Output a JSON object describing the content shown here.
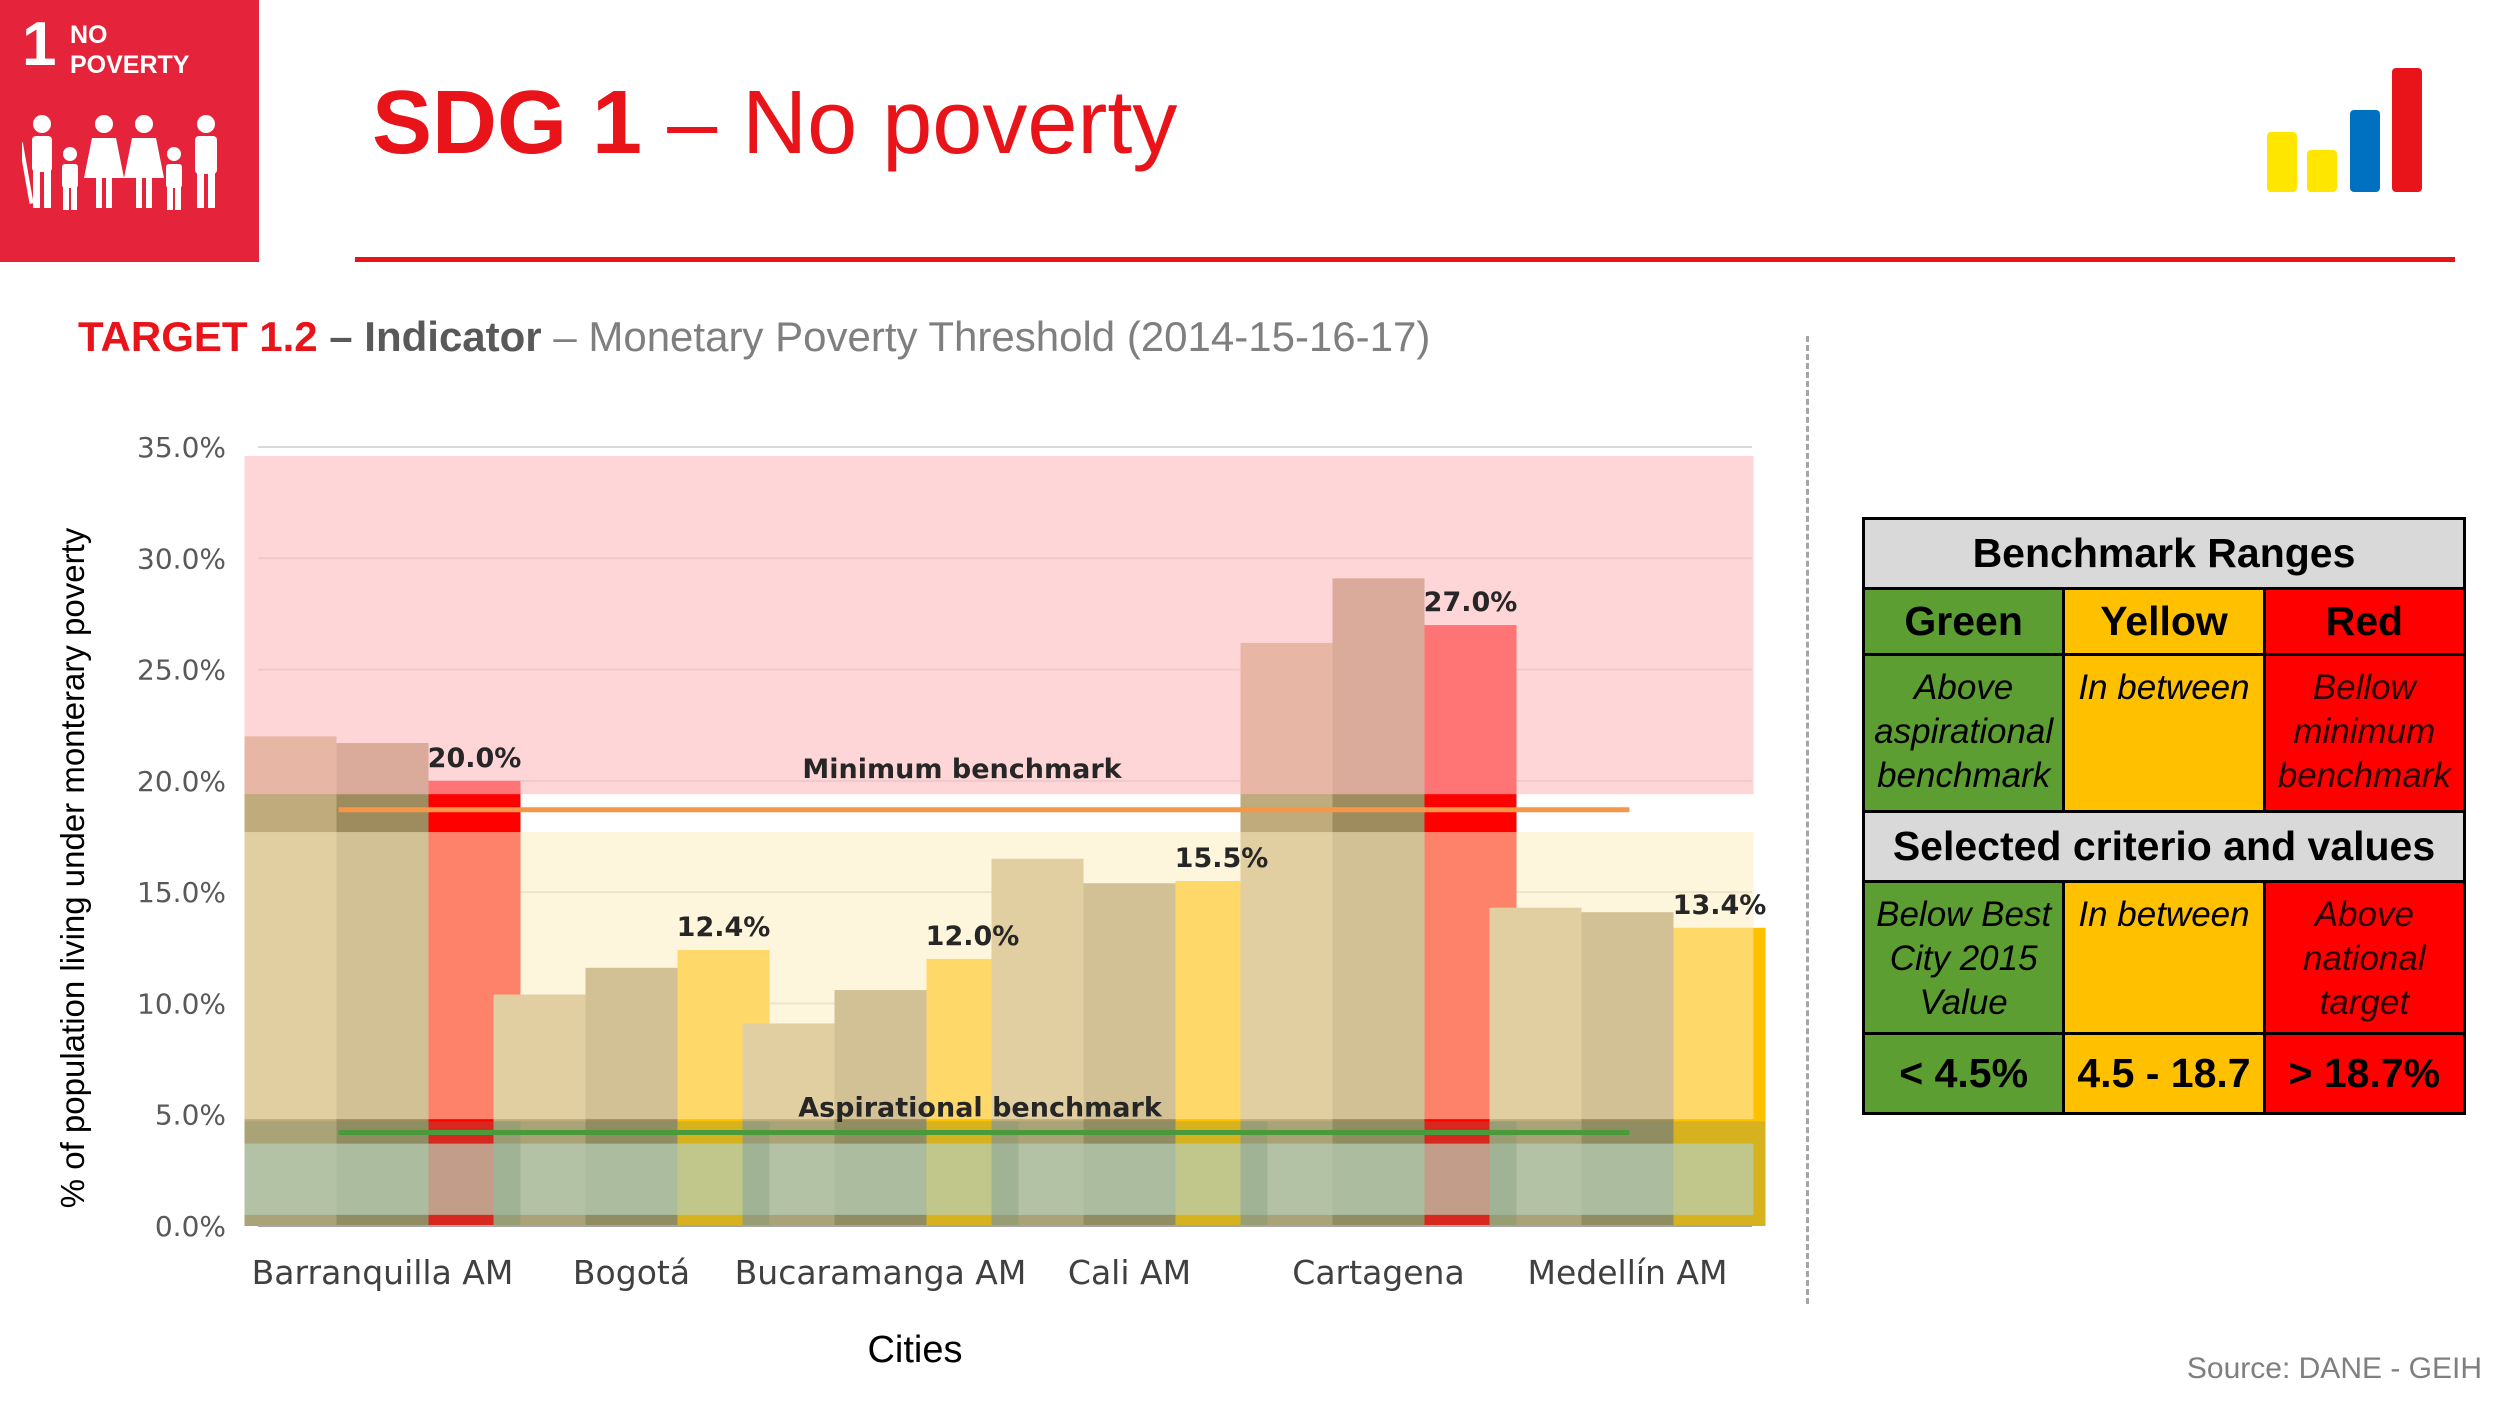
{
  "logo": {
    "goal_number": "1",
    "goal_line1": "NO",
    "goal_line2": "POVERTY",
    "people_icon": "family-icon",
    "brand_icon": "bar-chart-logo-icon"
  },
  "header": {
    "title_bold": "SDG 1",
    "title_rest": " – No poverty"
  },
  "subtitle": {
    "target": "TARGET 1.2",
    "indicator": " – Indicator",
    "description": " – Monetary Poverty Threshold (2014-15-16-17)"
  },
  "colors": {
    "brand_red": "#e8141a",
    "bar_2014": "#bfab7b",
    "bar_2015": "#9e8c5f",
    "bar_yellow": "#ffc000",
    "bar_red": "#ff0000",
    "band_red": "#ffbdbf",
    "band_yellow": "#fdedc1",
    "band_green": "#d4e8d4",
    "min_benchmark_line": "#f79646",
    "asp_benchmark_line": "#4a9a3c",
    "table_green": "#5c9e31",
    "table_yellow": "#ffc000",
    "table_red": "#ff0000"
  },
  "chart_data": {
    "type": "bar",
    "ylabel": "% of population living under monterary poverty",
    "xlabel": "Cities",
    "ylim": [
      0,
      35
    ],
    "yticks": [
      0,
      5,
      10,
      15,
      20,
      25,
      30,
      35
    ],
    "ytick_labels": [
      "0.0%",
      "5.0%",
      "10.0%",
      "15.0%",
      "20.0%",
      "25.0%",
      "30.0%",
      "35.0%"
    ],
    "grid": true,
    "categories": [
      "Barranquilla AM",
      "Bogotá",
      "Bucaramanga AM",
      "Cali AM",
      "Cartagena",
      "Medellín AM"
    ],
    "series": [
      {
        "values": [
          22.0,
          10.4,
          9.1,
          16.5,
          26.2,
          14.3
        ]
      },
      {
        "values": [
          21.7,
          11.6,
          10.6,
          15.4,
          29.1,
          14.1
        ]
      },
      {
        "values": [
          20.0,
          12.4,
          12.0,
          15.5,
          27.0,
          13.4
        ],
        "labels": [
          "20.0%",
          "12.4%",
          "12.0%",
          "15.5%",
          "27.0%",
          "13.4%"
        ],
        "status": [
          "red",
          "yellow",
          "yellow",
          "yellow",
          "red",
          "yellow"
        ]
      }
    ],
    "bands": [
      {
        "level": "red",
        "from": 19.4,
        "to": 34.6
      },
      {
        "level": "yellow",
        "from": 4.8,
        "to": 17.7
      },
      {
        "level": "green",
        "from": 0.5,
        "to": 3.7
      }
    ],
    "reference_lines": [
      {
        "label": "Minimum benchmark",
        "value": 18.7,
        "color": "#f79646"
      },
      {
        "label": "Aspirational benchmark",
        "value": 4.2,
        "color": "#4a9a3c"
      }
    ]
  },
  "table": {
    "title": "Benchmark Ranges",
    "columns": [
      "Green",
      "Yellow",
      "Red"
    ],
    "ranges": [
      "Above aspirational benchmark",
      "In between",
      "Bellow minimum benchmark"
    ],
    "criteria_title": "Selected criterio and values",
    "criteria": [
      "Below Best City 2015 Value",
      "In between",
      "Above national target"
    ],
    "values": [
      "< 4.5%",
      "4.5 - 18.7",
      "> 18.7%"
    ]
  },
  "source": "Source: DANE - GEIH"
}
